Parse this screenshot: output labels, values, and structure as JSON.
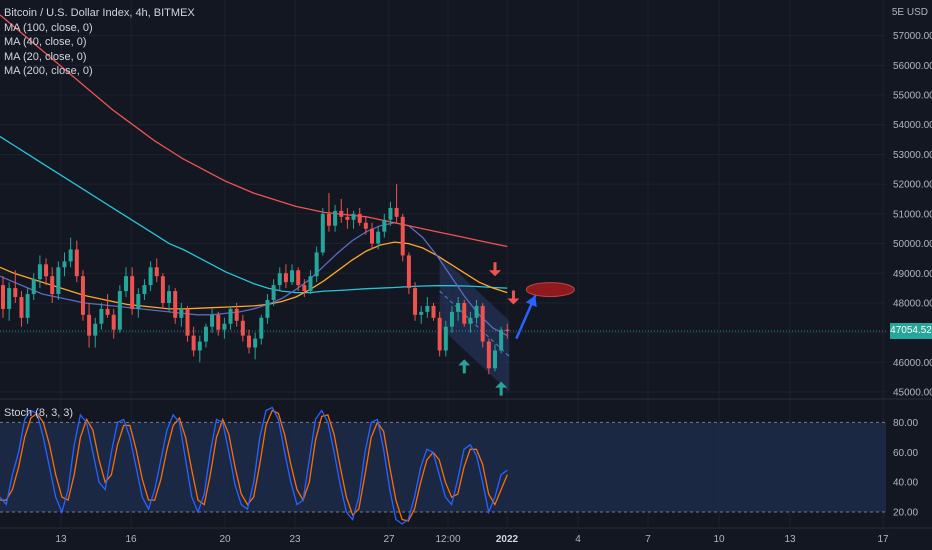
{
  "legend": {
    "symbol": "Bitcoin / U.S. Dollar Index, 4h, BITMEX",
    "ma": [
      "MA (100, close, 0)",
      "MA (40, close, 0)",
      "MA (20, close, 0)",
      "MA (200, close, 0)"
    ]
  },
  "currency_label": "5E USD",
  "last_price": "47054.52",
  "stoch_label": "Stoch (8, 3, 3)",
  "colors": {
    "background": "#131722",
    "bull": "#26a69a",
    "bear": "#ef5350",
    "ma100": "#26c6da",
    "ma40": "#ffa726",
    "ma20": "#5c6bc0",
    "ma200": "#ef5350",
    "stoch_k": "#2962ff",
    "stoch_d": "#ff6d00",
    "channel": "#283a66",
    "target": "#ef5350",
    "projection_arrow": "#2962ff"
  },
  "chart_data": [
    {
      "type": "candlestick",
      "yaxis_ticks": [
        "57000.00",
        "56000.00",
        "55000.00",
        "54000.00",
        "53000.00",
        "52000.00",
        "51000.00",
        "50000.00",
        "49000.00",
        "48000.00",
        "47000.00",
        "46000.00",
        "45000.00"
      ],
      "ylim": [
        44800,
        58200
      ],
      "xaxis_ticks": [
        "13",
        "16",
        "20",
        "23",
        "27",
        "12:00",
        "2022",
        "4",
        "7",
        "10",
        "13",
        "17"
      ],
      "last_price": 47054.52,
      "price_line": 47054.52,
      "ohlc": [
        [
          48600,
          48900,
          47500,
          47800
        ],
        [
          47800,
          48700,
          47400,
          48500
        ],
        [
          48500,
          49100,
          48000,
          48200
        ],
        [
          48200,
          48400,
          47200,
          47500
        ],
        [
          47500,
          48500,
          47300,
          48300
        ],
        [
          48300,
          49000,
          48100,
          48800
        ],
        [
          48800,
          49600,
          48500,
          49300
        ],
        [
          49300,
          49500,
          48600,
          48900
        ],
        [
          48900,
          49200,
          48000,
          48300
        ],
        [
          48300,
          49400,
          48100,
          49200
        ],
        [
          49200,
          49700,
          48900,
          49400
        ],
        [
          49400,
          50200,
          49200,
          49800
        ],
        [
          49800,
          50100,
          48700,
          48900
        ],
        [
          48900,
          49100,
          47400,
          47600
        ],
        [
          47600,
          48000,
          46500,
          46900
        ],
        [
          46900,
          47500,
          46500,
          47300
        ],
        [
          47300,
          48000,
          47100,
          47800
        ],
        [
          47800,
          48300,
          47500,
          47600
        ],
        [
          47600,
          47800,
          46800,
          47100
        ],
        [
          47100,
          48600,
          47000,
          48400
        ],
        [
          48400,
          49200,
          48200,
          48900
        ],
        [
          48900,
          49200,
          47600,
          47800
        ],
        [
          47800,
          48500,
          47500,
          48300
        ],
        [
          48300,
          48800,
          48100,
          48600
        ],
        [
          48600,
          49400,
          48400,
          49200
        ],
        [
          49200,
          49500,
          48700,
          48900
        ],
        [
          48900,
          49000,
          47800,
          48000
        ],
        [
          48000,
          48600,
          47700,
          48400
        ],
        [
          48400,
          48500,
          47300,
          47500
        ],
        [
          47500,
          48000,
          47200,
          47800
        ],
        [
          47800,
          47900,
          46700,
          46900
        ],
        [
          46900,
          47200,
          46200,
          46400
        ],
        [
          46400,
          46900,
          46000,
          46700
        ],
        [
          46700,
          47300,
          46500,
          47200
        ],
        [
          47200,
          47800,
          47000,
          47600
        ],
        [
          47600,
          47700,
          46900,
          47100
        ],
        [
          47100,
          47500,
          46800,
          47300
        ],
        [
          47300,
          47900,
          47100,
          47800
        ],
        [
          47800,
          48000,
          47200,
          47400
        ],
        [
          47400,
          47600,
          46700,
          46900
        ],
        [
          46900,
          47100,
          46300,
          46500
        ],
        [
          46500,
          47000,
          46100,
          46800
        ],
        [
          46800,
          47600,
          46600,
          47500
        ],
        [
          47500,
          48300,
          47300,
          48100
        ],
        [
          48100,
          48800,
          47900,
          48600
        ],
        [
          48600,
          49200,
          48400,
          49000
        ],
        [
          49000,
          49300,
          48500,
          48700
        ],
        [
          48700,
          49300,
          48600,
          49100
        ],
        [
          49100,
          49200,
          48400,
          48600
        ],
        [
          48600,
          48800,
          48200,
          48400
        ],
        [
          48400,
          49100,
          48300,
          48900
        ],
        [
          48900,
          49900,
          48700,
          49700
        ],
        [
          49700,
          51200,
          49600,
          51000
        ],
        [
          51000,
          51700,
          50400,
          50600
        ],
        [
          50600,
          51300,
          50400,
          51100
        ],
        [
          51100,
          51500,
          50700,
          50900
        ],
        [
          50900,
          51200,
          50500,
          50800
        ],
        [
          50800,
          51100,
          50500,
          51000
        ],
        [
          51000,
          51200,
          50600,
          50700
        ],
        [
          50700,
          50900,
          50300,
          50500
        ],
        [
          50500,
          50700,
          49800,
          50000
        ],
        [
          50000,
          50600,
          49800,
          50400
        ],
        [
          50400,
          51000,
          50200,
          50800
        ],
        [
          50800,
          51400,
          50600,
          51200
        ],
        [
          51200,
          52000,
          50700,
          50900
        ],
        [
          50900,
          51000,
          49400,
          49600
        ],
        [
          49600,
          49700,
          48300,
          48500
        ],
        [
          48500,
          48700,
          47400,
          47600
        ],
        [
          47600,
          47900,
          47300,
          47700
        ],
        [
          47700,
          48200,
          47500,
          47900
        ],
        [
          47900,
          48000,
          47400,
          47500
        ],
        [
          47500,
          47700,
          46200,
          46400
        ],
        [
          46400,
          47400,
          46200,
          47200
        ],
        [
          47200,
          47900,
          47000,
          47700
        ],
        [
          47700,
          48200,
          47400,
          48000
        ],
        [
          48000,
          48100,
          47200,
          47300
        ],
        [
          47300,
          47700,
          47000,
          47500
        ],
        [
          47500,
          48100,
          47300,
          47900
        ],
        [
          47900,
          48000,
          46500,
          46700
        ],
        [
          46700,
          46800,
          45600,
          45800
        ],
        [
          45800,
          46600,
          45700,
          46400
        ],
        [
          46400,
          47200,
          46300,
          47100
        ],
        [
          47100,
          47300,
          46800,
          47054
        ]
      ]
    },
    {
      "type": "line",
      "series": [
        {
          "name": "MA (100, close, 0)",
          "values": [
            53600,
            53300,
            53000,
            52700,
            52400,
            52100,
            51800,
            51500,
            51200,
            50900,
            50600,
            50300,
            50000,
            49800,
            49550,
            49300,
            49050,
            48850,
            48650,
            48500,
            48400,
            48350,
            48350,
            48400,
            48420,
            48450,
            48480,
            48500,
            48520,
            48550,
            48570,
            48580,
            48580,
            48570,
            48550,
            48520,
            48500
          ]
        },
        {
          "name": "MA (40, close, 0)",
          "values": [
            49200,
            49000,
            48850,
            48700,
            48550,
            48400,
            48250,
            48150,
            48050,
            47950,
            47900,
            47850,
            47800,
            47800,
            47820,
            47840,
            47860,
            47880,
            47900,
            47950,
            48050,
            48200,
            48450,
            48750,
            49100,
            49450,
            49750,
            49950,
            50050,
            50000,
            49850,
            49600,
            49300,
            49000,
            48700,
            48500,
            48350
          ]
        },
        {
          "name": "MA (20, close, 0)",
          "values": [
            48900,
            48700,
            48500,
            48300,
            48200,
            48100,
            48000,
            47950,
            47900,
            47850,
            47800,
            47750,
            47700,
            47650,
            47600,
            47600,
            47650,
            47700,
            47800,
            47950,
            48150,
            48450,
            48800,
            49250,
            49700,
            50100,
            50400,
            50600,
            50700,
            50600,
            50200,
            49600,
            48900,
            48200,
            47600,
            47150,
            46900
          ]
        },
        {
          "name": "MA (200, close, 0)",
          "values": [
            57700,
            57300,
            56900,
            56500,
            56100,
            55700,
            55300,
            54900,
            54500,
            54150,
            53800,
            53450,
            53150,
            52850,
            52600,
            52350,
            52100,
            51900,
            51700,
            51550,
            51400,
            51250,
            51150,
            51050,
            51000,
            50950,
            50900,
            50800,
            50700,
            50600,
            50500,
            50400,
            50300,
            50200,
            50100,
            50000,
            49900
          ]
        }
      ]
    },
    {
      "type": "line",
      "yaxis_ticks": [
        "80.00",
        "60.00",
        "40.00",
        "20.00"
      ],
      "ylim": [
        10,
        95
      ],
      "series": [
        {
          "name": "%K",
          "values": [
            30,
            25,
            45,
            60,
            82,
            88,
            86,
            70,
            50,
            30,
            20,
            35,
            65,
            85,
            80,
            60,
            40,
            35,
            60,
            80,
            82,
            70,
            50,
            30,
            22,
            35,
            55,
            75,
            85,
            80,
            55,
            30,
            20,
            32,
            60,
            82,
            80,
            60,
            38,
            25,
            22,
            40,
            70,
            88,
            90,
            82,
            60,
            40,
            25,
            28,
            55,
            82,
            88,
            80,
            60,
            38,
            20,
            15,
            30,
            60,
            80,
            82,
            62,
            35,
            15,
            12,
            15,
            30,
            50,
            62,
            60,
            45,
            30,
            25,
            42,
            62,
            65,
            58,
            40,
            20,
            30,
            45,
            48
          ]
        },
        {
          "name": "%D",
          "values": [
            28,
            28,
            35,
            50,
            70,
            83,
            86,
            80,
            65,
            45,
            30,
            28,
            45,
            70,
            82,
            75,
            55,
            40,
            45,
            65,
            78,
            78,
            62,
            42,
            28,
            28,
            42,
            62,
            78,
            83,
            70,
            48,
            28,
            25,
            45,
            70,
            82,
            72,
            50,
            32,
            25,
            30,
            52,
            78,
            88,
            86,
            72,
            52,
            35,
            28,
            40,
            68,
            84,
            85,
            72,
            50,
            30,
            18,
            22,
            45,
            70,
            80,
            74,
            50,
            28,
            15,
            14,
            22,
            40,
            55,
            60,
            55,
            40,
            30,
            32,
            50,
            62,
            62,
            52,
            32,
            25,
            35,
            45
          ]
        }
      ]
    }
  ]
}
